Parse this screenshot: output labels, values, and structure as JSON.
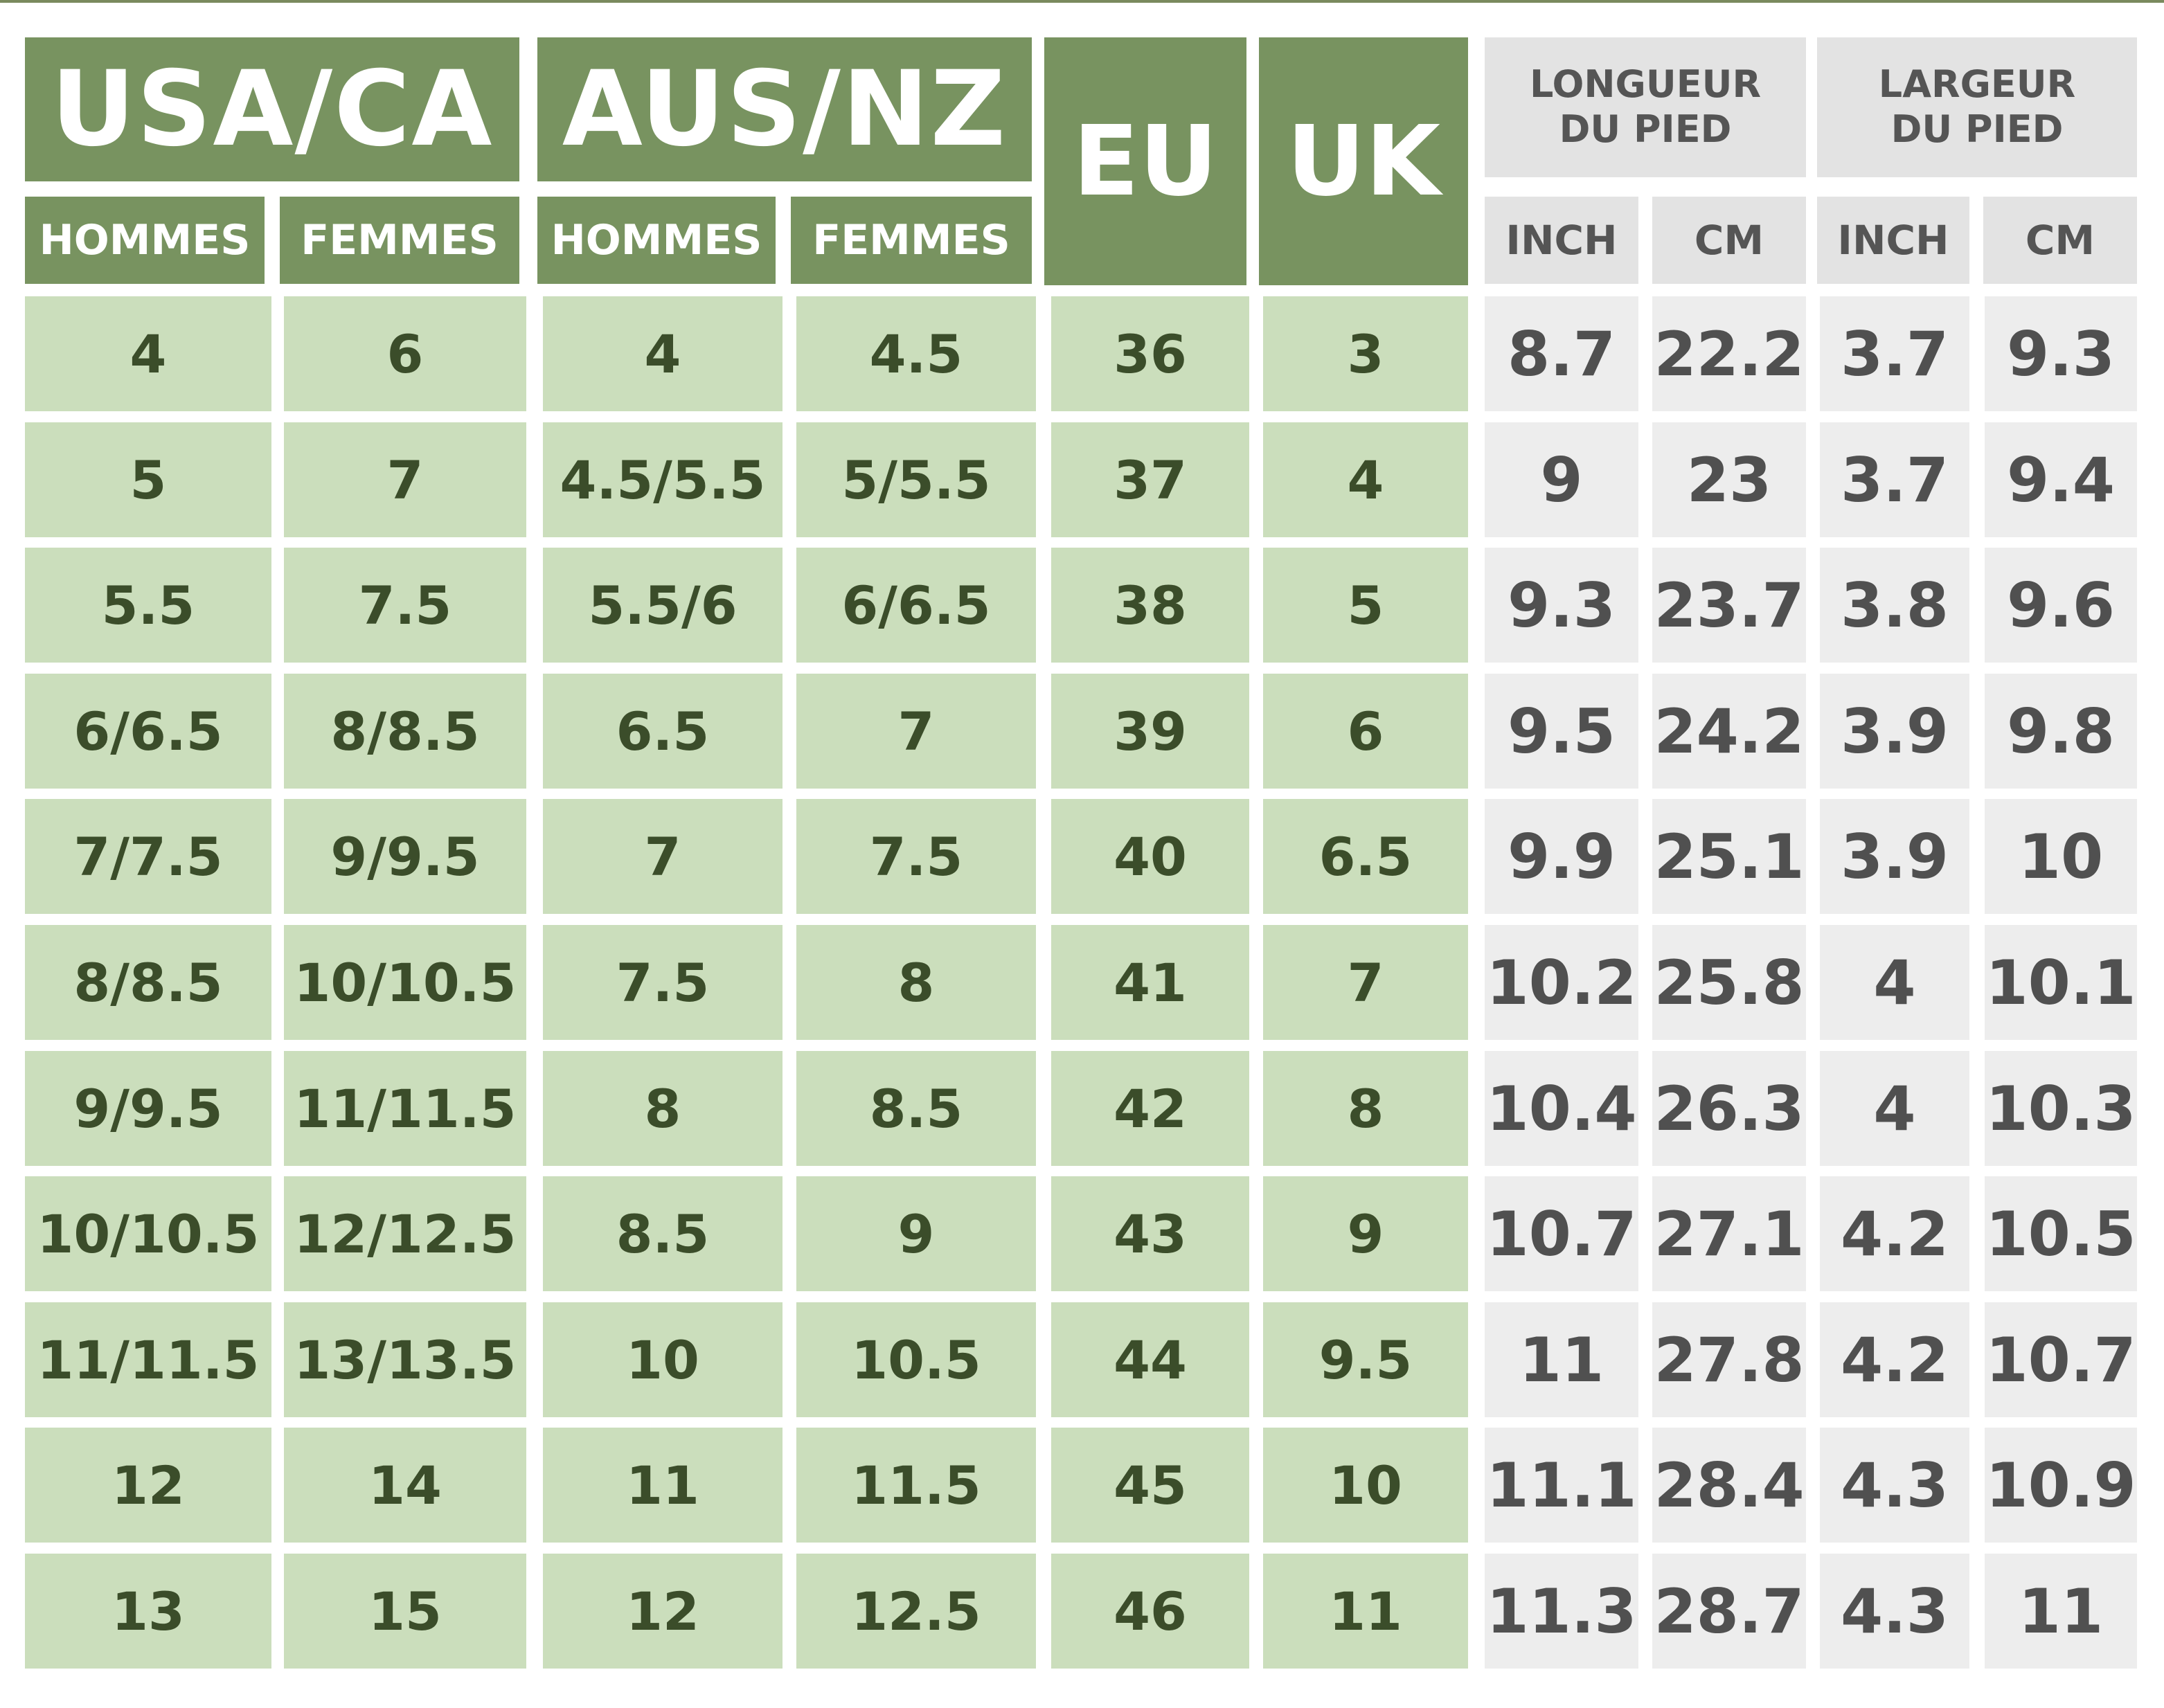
{
  "headers": {
    "usa_ca": "USA/CA",
    "aus_nz": "AUS/NZ",
    "eu": "EU",
    "uk": "UK",
    "foot_length": "LONGUEUR DU PIED",
    "foot_width": "LARGEUR DU PIED",
    "hommes": "HOMMES",
    "femmes": "FEMMES",
    "inch": "INCH",
    "cm": "CM"
  },
  "colors": {
    "header_green": "#789360",
    "cell_green": "#cbdebc",
    "header_gray": "#e3e3e3",
    "cell_gray": "#ededed"
  },
  "rows": [
    [
      "4",
      "6",
      "4",
      "4.5",
      "36",
      "3",
      "8.7",
      "22.2",
      "3.7",
      "9.3"
    ],
    [
      "5",
      "7",
      "4.5/5.5",
      "5/5.5",
      "37",
      "4",
      "9",
      "23",
      "3.7",
      "9.4"
    ],
    [
      "5.5",
      "7.5",
      "5.5/6",
      "6/6.5",
      "38",
      "5",
      "9.3",
      "23.7",
      "3.8",
      "9.6"
    ],
    [
      "6/6.5",
      "8/8.5",
      "6.5",
      "7",
      "39",
      "6",
      "9.5",
      "24.2",
      "3.9",
      "9.8"
    ],
    [
      "7/7.5",
      "9/9.5",
      "7",
      "7.5",
      "40",
      "6.5",
      "9.9",
      "25.1",
      "3.9",
      "10"
    ],
    [
      "8/8.5",
      "10/10.5",
      "7.5",
      "8",
      "41",
      "7",
      "10.2",
      "25.8",
      "4",
      "10.1"
    ],
    [
      "9/9.5",
      "11/11.5",
      "8",
      "8.5",
      "42",
      "8",
      "10.4",
      "26.3",
      "4",
      "10.3"
    ],
    [
      "10/10.5",
      "12/12.5",
      "8.5",
      "9",
      "43",
      "9",
      "10.7",
      "27.1",
      "4.2",
      "10.5"
    ],
    [
      "11/11.5",
      "13/13.5",
      "10",
      "10.5",
      "44",
      "9.5",
      "11",
      "27.8",
      "4.2",
      "10.7"
    ],
    [
      "12",
      "14",
      "11",
      "11.5",
      "45",
      "10",
      "11.1",
      "28.4",
      "4.3",
      "10.9"
    ],
    [
      "13",
      "15",
      "12",
      "12.5",
      "46",
      "11",
      "11.3",
      "28.7",
      "4.3",
      "11"
    ]
  ]
}
